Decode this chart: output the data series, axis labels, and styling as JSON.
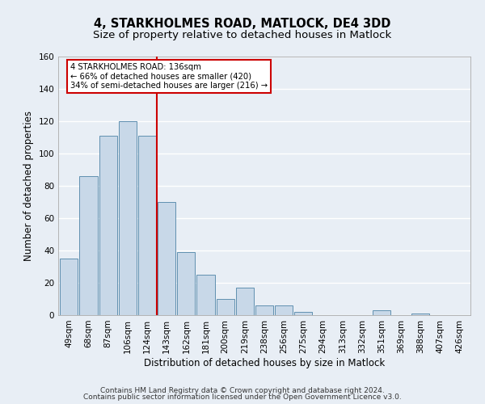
{
  "title": "4, STARKHOLMES ROAD, MATLOCK, DE4 3DD",
  "subtitle": "Size of property relative to detached houses in Matlock",
  "xlabel": "Distribution of detached houses by size in Matlock",
  "ylabel": "Number of detached properties",
  "bar_labels": [
    "49sqm",
    "68sqm",
    "87sqm",
    "106sqm",
    "124sqm",
    "143sqm",
    "162sqm",
    "181sqm",
    "200sqm",
    "219sqm",
    "238sqm",
    "256sqm",
    "275sqm",
    "294sqm",
    "313sqm",
    "332sqm",
    "351sqm",
    "369sqm",
    "388sqm",
    "407sqm",
    "426sqm"
  ],
  "bar_values": [
    35,
    86,
    111,
    120,
    111,
    70,
    39,
    25,
    10,
    17,
    6,
    6,
    2,
    0,
    0,
    0,
    3,
    0,
    1,
    0,
    0
  ],
  "bar_color": "#c8d8e8",
  "bar_edge_color": "#6090b0",
  "vline_x": 4.5,
  "vline_color": "#cc0000",
  "annotation_text": "4 STARKHOLMES ROAD: 136sqm\n← 66% of detached houses are smaller (420)\n34% of semi-detached houses are larger (216) →",
  "annotation_box_color": "#ffffff",
  "annotation_box_edge": "#cc0000",
  "ylim": [
    0,
    160
  ],
  "yticks": [
    0,
    20,
    40,
    60,
    80,
    100,
    120,
    140,
    160
  ],
  "footer_line1": "Contains HM Land Registry data © Crown copyright and database right 2024.",
  "footer_line2": "Contains public sector information licensed under the Open Government Licence v3.0.",
  "background_color": "#e8eef5",
  "plot_background": "#e8eef5",
  "grid_color": "#ffffff",
  "title_fontsize": 10.5,
  "subtitle_fontsize": 9.5,
  "axis_label_fontsize": 8.5,
  "tick_fontsize": 7.5,
  "footer_fontsize": 6.5
}
